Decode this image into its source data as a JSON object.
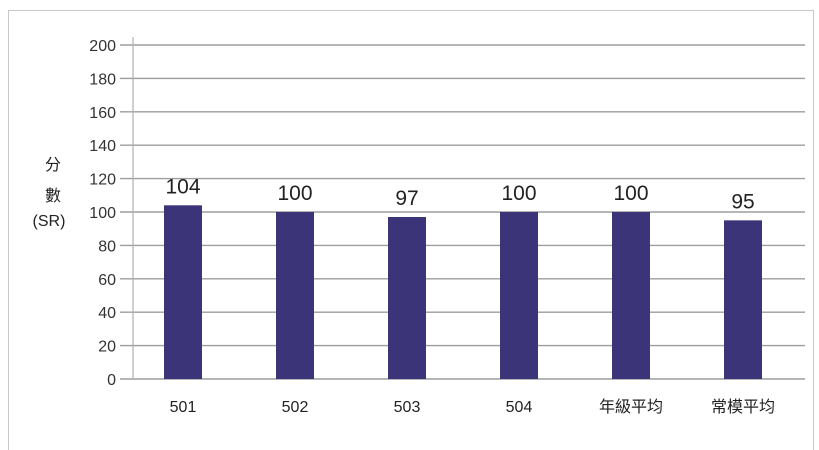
{
  "chart_data": {
    "type": "bar",
    "categories": [
      "501",
      "502",
      "503",
      "504",
      "年級平均",
      "常模平均"
    ],
    "values": [
      104,
      100,
      97,
      100,
      100,
      95
    ],
    "data_labels": [
      "104",
      "100",
      "97",
      "100",
      "100",
      "95"
    ],
    "ylabel_lines": [
      "分",
      "數",
      "(SR)"
    ],
    "ylim": [
      0,
      200
    ],
    "yticks": [
      0,
      20,
      40,
      60,
      80,
      100,
      120,
      140,
      160,
      180,
      200
    ],
    "grid": true,
    "legend": "none",
    "bar_color": "#3b3479",
    "grid_color": "#9e9e9e"
  }
}
